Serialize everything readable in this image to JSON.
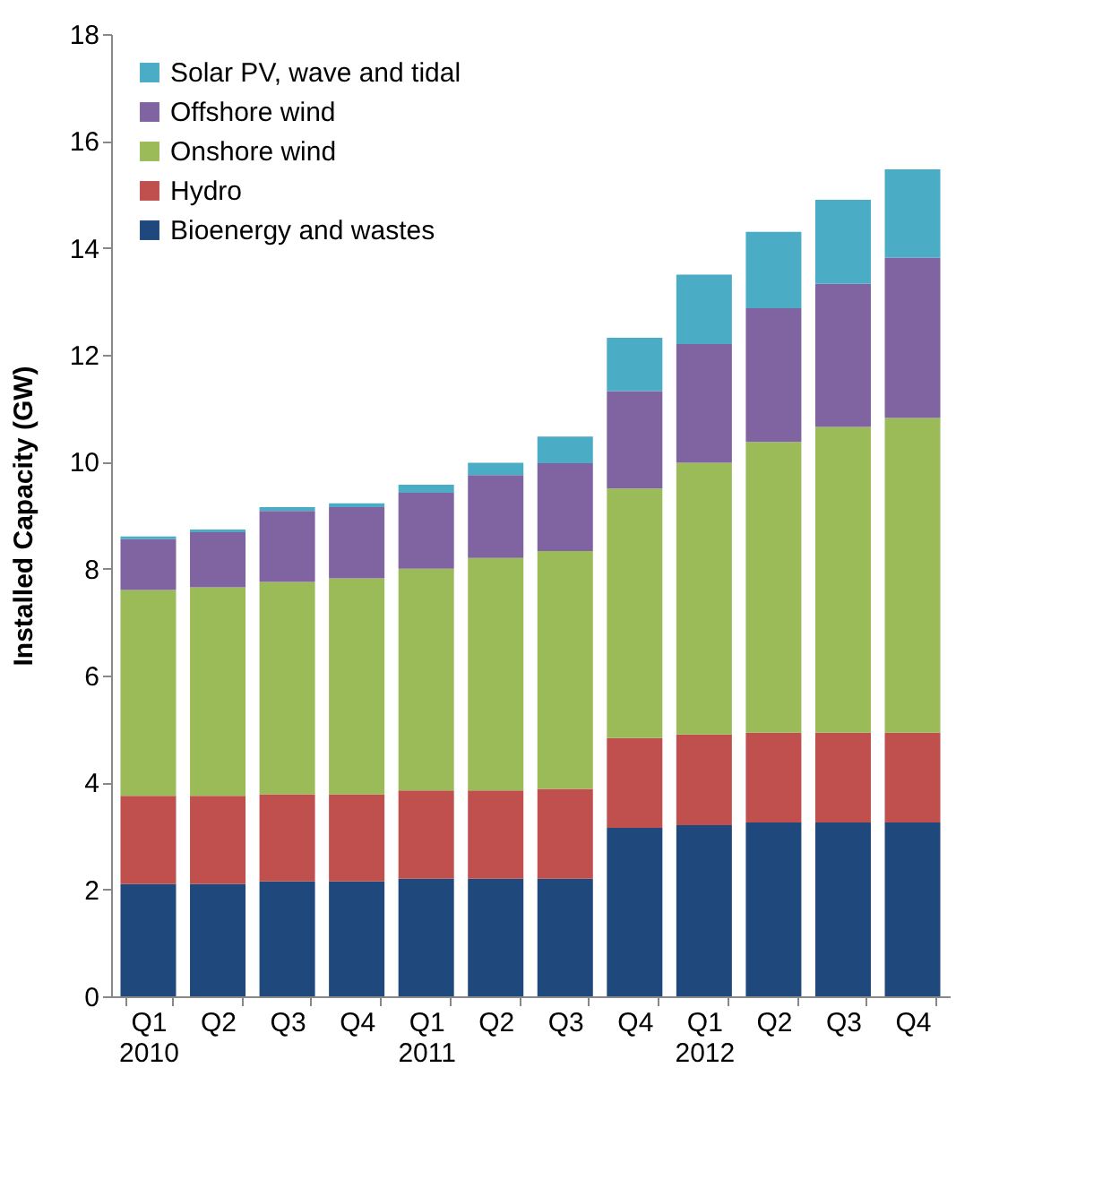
{
  "chart_data": {
    "type": "bar",
    "stacked": true,
    "ylabel": "Installed Capacity (GW)",
    "categories": [
      "Q1\n2010",
      "Q2",
      "Q3",
      "Q4",
      "Q1\n2011",
      "Q2",
      "Q3",
      "Q4",
      "Q1\n2012",
      "Q2",
      "Q3",
      "Q4"
    ],
    "series": [
      {
        "name": "Bioenergy and wastes",
        "color": "#1f497d",
        "values": [
          2.1,
          2.1,
          2.15,
          2.15,
          2.2,
          2.2,
          2.2,
          3.15,
          3.2,
          3.25,
          3.25,
          3.25
        ]
      },
      {
        "name": "Hydro",
        "color": "#c0504d",
        "values": [
          1.65,
          1.65,
          1.63,
          1.63,
          1.65,
          1.65,
          1.68,
          1.68,
          1.7,
          1.68,
          1.68,
          1.68
        ]
      },
      {
        "name": "Onshore wind",
        "color": "#9bbb59",
        "values": [
          3.85,
          3.9,
          3.97,
          4.04,
          4.15,
          4.35,
          4.45,
          4.67,
          5.08,
          5.44,
          5.72,
          5.89
        ]
      },
      {
        "name": "Offshore wind",
        "color": "#8064a2",
        "values": [
          0.95,
          1.03,
          1.33,
          1.33,
          1.42,
          1.55,
          1.64,
          1.82,
          2.22,
          2.5,
          2.68,
          3.0
        ]
      },
      {
        "name": "Solar PV, wave and tidal",
        "color": "#4bacc6",
        "values": [
          0.05,
          0.05,
          0.07,
          0.07,
          0.15,
          0.23,
          0.5,
          1.0,
          1.3,
          1.43,
          1.57,
          1.65
        ]
      }
    ],
    "ylim": [
      0,
      18
    ],
    "yticks": [
      0,
      2,
      4,
      6,
      8,
      10,
      12,
      14,
      16,
      18
    ],
    "grid": false,
    "legend": "top left"
  }
}
